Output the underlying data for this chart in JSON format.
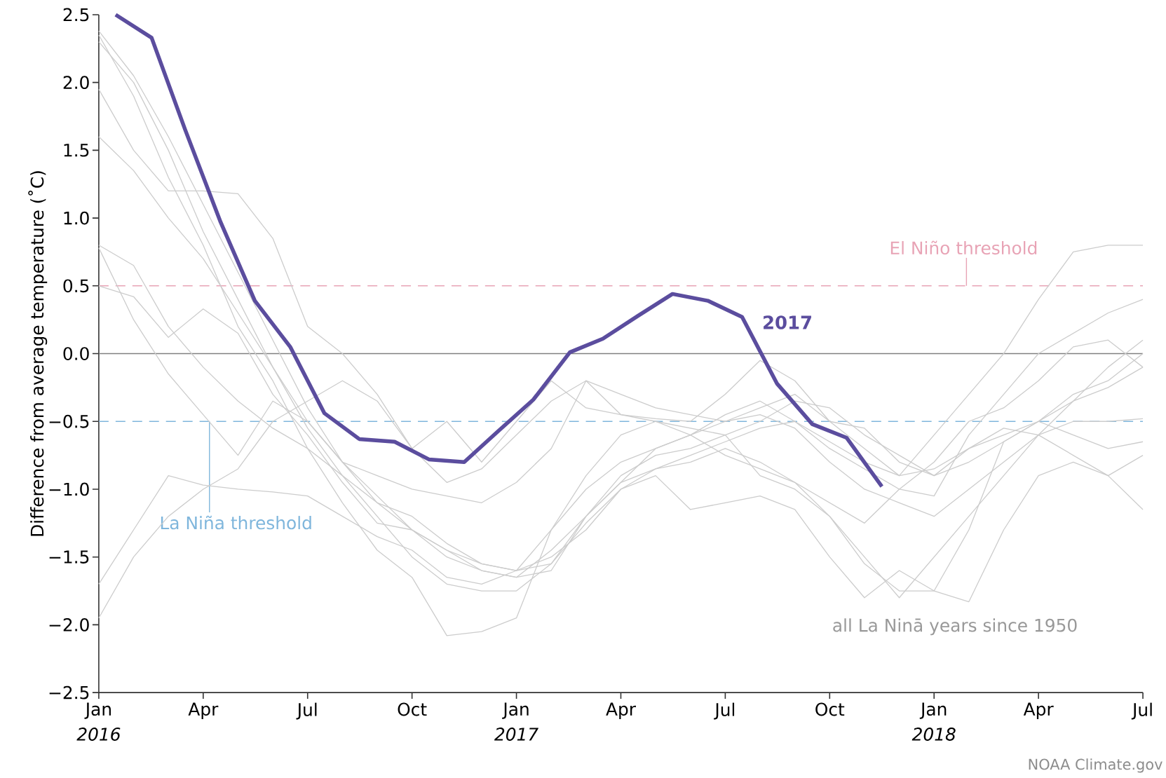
{
  "chart_data": {
    "type": "line",
    "ylabel": "Difference from average temperature (˚C)",
    "xlim": [
      "2016-01",
      "2018-07"
    ],
    "xticks": [
      {
        "value": "2016-01",
        "label": "Jan *2016*"
      },
      {
        "value": "2016-04",
        "label": "Apr"
      },
      {
        "value": "2016-07",
        "label": "Jul"
      },
      {
        "value": "2016-10",
        "label": "Oct"
      },
      {
        "value": "2017-01",
        "label": "Jan *2017*"
      },
      {
        "value": "2017-04",
        "label": "Apr"
      },
      {
        "value": "2017-07",
        "label": "Jul"
      },
      {
        "value": "2017-10",
        "label": "Oct"
      },
      {
        "value": "2018-01",
        "label": "Jan *2018*"
      },
      {
        "value": "2018-04",
        "label": "Apr"
      },
      {
        "value": "2018-07",
        "label": "Jul"
      }
    ],
    "ylim": [
      -2.5,
      2.5
    ],
    "yticks": [
      {
        "value": -2.5,
        "label": "−2.5"
      },
      {
        "value": -2.0,
        "label": "−2.0"
      },
      {
        "value": -1.5,
        "label": "−1.5"
      },
      {
        "value": -1.0,
        "label": "−1.0"
      },
      {
        "value": -0.5,
        "label": "−0.5"
      },
      {
        "value": 0.0,
        "label": "0.0"
      },
      {
        "value": 0.5,
        "label": "0.5"
      },
      {
        "value": 1.0,
        "label": "1.0"
      },
      {
        "value": 1.5,
        "label": "1.5"
      },
      {
        "value": 2.0,
        "label": "2.0"
      },
      {
        "value": 2.5,
        "label": "2.5"
      }
    ],
    "x": [
      "2016-01",
      "2016-02",
      "2016-03",
      "2016-04",
      "2016-05",
      "2016-06",
      "2016-07",
      "2016-08",
      "2016-09",
      "2016-10",
      "2016-11",
      "2016-12",
      "2017-01",
      "2017-02",
      "2017-03",
      "2017-04",
      "2017-05",
      "2017-06",
      "2017-07",
      "2017-08",
      "2017-09",
      "2017-10",
      "2017-11",
      "2017-12",
      "2018-01",
      "2018-02",
      "2018-03",
      "2018-04",
      "2018-05",
      "2018-06",
      "2018-07"
    ],
    "series": [
      {
        "color": "#cccccc",
        "values": [
          2.38,
          2.05,
          1.6,
          1.1,
          0.6,
          0.1,
          -0.4,
          -0.8,
          -1.05,
          -1.3,
          -1.45,
          -1.6,
          -1.65,
          -1.45,
          -1.2,
          -0.9,
          -0.75,
          -0.7,
          -0.6,
          -0.5,
          -0.35,
          -0.4,
          -0.6,
          -0.75,
          -0.9,
          -0.8,
          -0.65,
          -0.5,
          -0.35,
          -0.25,
          -0.1
        ]
      },
      {
        "color": "#cccccc",
        "values": [
          2.3,
          2.0,
          1.5,
          0.9,
          0.4,
          -0.1,
          -0.55,
          -0.9,
          -1.2,
          -1.5,
          -1.7,
          -1.75,
          -1.75,
          -1.55,
          -1.25,
          -1.0,
          -0.85,
          -0.8,
          -0.7,
          -0.8,
          -0.95,
          -1.2,
          -1.5,
          -1.8,
          -1.5,
          -1.2,
          -0.9,
          -0.6,
          -0.35,
          -0.1,
          0.1
        ]
      },
      {
        "color": "#cccccc",
        "values": [
          1.95,
          1.5,
          1.2,
          1.2,
          1.18,
          0.85,
          0.2,
          0.0,
          -0.3,
          -0.7,
          -0.5,
          -0.8,
          -0.5,
          -0.2,
          -0.4,
          -0.45,
          -0.48,
          -0.5,
          -0.3,
          -0.05,
          -0.2,
          -0.5,
          -0.7,
          -0.9,
          -0.6,
          -0.3,
          0.0,
          0.4,
          0.75,
          0.8,
          0.8
        ]
      },
      {
        "color": "#cccccc",
        "values": [
          1.6,
          1.35,
          1.0,
          0.7,
          0.3,
          -0.1,
          -0.5,
          -0.8,
          -1.1,
          -1.3,
          -1.45,
          -1.55,
          -1.6,
          -1.3,
          -1.0,
          -0.8,
          -0.7,
          -0.6,
          -0.45,
          -0.35,
          -0.5,
          -0.7,
          -0.85,
          -1.0,
          -1.05,
          -0.6,
          -0.3,
          0.0,
          0.15,
          0.3,
          0.4
        ]
      },
      {
        "color": "#cccccc",
        "values": [
          0.8,
          0.65,
          0.2,
          -0.1,
          -0.35,
          -0.55,
          -0.7,
          -0.9,
          -1.1,
          -1.2,
          -1.4,
          -1.55,
          -1.6,
          -1.55,
          -1.2,
          -0.95,
          -0.85,
          -0.75,
          -0.65,
          -0.55,
          -0.5,
          -0.65,
          -0.8,
          -0.9,
          -0.85,
          -0.7,
          -0.6,
          -0.5,
          -0.6,
          -0.7,
          -0.65
        ]
      },
      {
        "color": "#cccccc",
        "values": [
          0.78,
          0.25,
          -0.15,
          -0.45,
          -0.75,
          -0.35,
          -0.5,
          -0.8,
          -0.9,
          -1.0,
          -1.05,
          -1.1,
          -0.95,
          -0.7,
          -0.2,
          -0.3,
          -0.4,
          -0.45,
          -0.5,
          -0.4,
          -0.3,
          -0.5,
          -0.55,
          -0.8,
          -0.9,
          -0.7,
          -0.55,
          -0.6,
          -0.75,
          -0.9,
          -1.15
        ]
      },
      {
        "color": "#cccccc",
        "values": [
          0.5,
          0.42,
          0.12,
          0.33,
          0.15,
          -0.3,
          -0.6,
          -0.95,
          -1.25,
          -1.3,
          -1.5,
          -1.6,
          -1.65,
          -1.6,
          -1.2,
          -0.95,
          -0.7,
          -0.6,
          -0.5,
          -0.45,
          -0.55,
          -0.8,
          -1.0,
          -1.1,
          -1.2,
          -1.0,
          -0.8,
          -0.6,
          -0.5,
          -0.5,
          -0.48
        ]
      },
      {
        "color": "#cccccc",
        "values": [
          -1.7,
          -1.3,
          -0.9,
          -0.97,
          -1.0,
          -1.02,
          -1.05,
          -1.2,
          -1.35,
          -1.45,
          -1.65,
          -1.7,
          -1.6,
          -1.5,
          -1.3,
          -1.0,
          -0.9,
          -1.15,
          -1.1,
          -1.05,
          -1.15,
          -1.5,
          -1.8,
          -1.6,
          -1.75,
          -1.83,
          -1.3,
          -0.9,
          -0.8,
          -0.9,
          -0.75
        ]
      },
      {
        "color": "#cccccc",
        "values": [
          -1.95,
          -1.5,
          -1.2,
          -1.0,
          -0.85,
          -0.5,
          -0.35,
          -0.2,
          -0.35,
          -0.7,
          -0.95,
          -0.85,
          -0.6,
          -0.35,
          -0.2,
          -0.45,
          -0.5,
          -0.55,
          -0.6,
          -0.9,
          -1.0,
          -1.2,
          -1.55,
          -1.75,
          -1.75,
          -1.3,
          -0.65,
          -0.5,
          -0.3,
          -0.2,
          0.0
        ]
      },
      {
        "color": "#cccccc",
        "values": [
          2.35,
          1.9,
          1.3,
          0.8,
          0.2,
          -0.2,
          -0.7,
          -1.1,
          -1.45,
          -1.65,
          -2.08,
          -2.05,
          -1.95,
          -1.3,
          -0.9,
          -0.6,
          -0.5,
          -0.6,
          -0.75,
          -0.85,
          -0.95,
          -1.1,
          -1.25,
          -1.0,
          -0.8,
          -0.5,
          -0.4,
          -0.2,
          0.05,
          0.1,
          -0.1
        ]
      },
      {
        "name": "2017",
        "color": "#5b4d9e",
        "x": [
          "2016-01-16",
          "2016-02-16",
          "2016-03-16",
          "2016-04-16",
          "2016-05-16",
          "2016-06-16",
          "2016-07-16",
          "2016-08-16",
          "2016-09-16",
          "2016-10-16",
          "2016-11-16",
          "2016-12-16",
          "2017-01-16",
          "2017-02-16",
          "2017-03-16",
          "2017-04-16",
          "2017-05-16",
          "2017-06-16",
          "2017-07-16",
          "2017-08-16",
          "2017-09-16",
          "2017-10-16",
          "2017-11-16"
        ],
        "values": [
          2.5,
          2.33,
          1.65,
          0.97,
          0.39,
          0.05,
          -0.44,
          -0.63,
          -0.65,
          -0.78,
          -0.8,
          -0.57,
          -0.34,
          0.01,
          0.11,
          0.28,
          0.44,
          0.39,
          0.27,
          -0.22,
          -0.52,
          -0.62,
          -0.98
        ]
      }
    ],
    "ref_lines": [
      {
        "axis": "y",
        "value": 0,
        "color": "#808080",
        "line_style": "solid"
      },
      {
        "axis": "y",
        "value": 0.5,
        "label": "El Niño threshold",
        "color": "#e8a3b5",
        "line_style": "dashed"
      },
      {
        "axis": "y",
        "value": -0.5,
        "label": "La Niña threshold",
        "color": "#7fb6dc",
        "line_style": "dashed"
      }
    ],
    "annotations": [
      "all La Ninā years since 1950",
      "NOAA Climate.gov"
    ],
    "marker": "none",
    "grid": false
  }
}
